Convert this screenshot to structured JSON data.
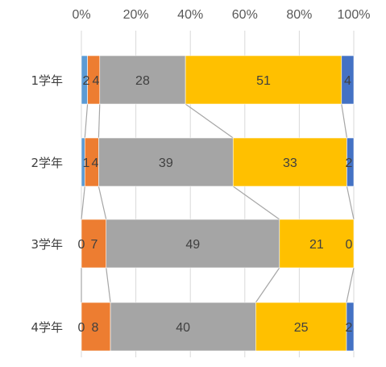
{
  "chart_data": {
    "type": "bar",
    "orientation": "horizontal",
    "stacked": "percent",
    "categories": [
      "1学年",
      "2学年",
      "3学年",
      "4学年"
    ],
    "x_ticks": [
      "0%",
      "20%",
      "40%",
      "60%",
      "80%",
      "100%"
    ],
    "xlim": [
      0,
      100
    ],
    "x_axis_position": "top",
    "grid": true,
    "series_lines": true,
    "legend": "none",
    "series": [
      {
        "color": "#5B9BD5",
        "values": [
          2,
          1,
          0,
          0
        ],
        "labels": [
          "2",
          "1",
          "0",
          "0"
        ]
      },
      {
        "color": "#ED7D31",
        "values": [
          4,
          4,
          7,
          8
        ],
        "labels": [
          "4",
          "4",
          "7",
          "8"
        ]
      },
      {
        "color": "#A5A5A5",
        "values": [
          28,
          39,
          49,
          40
        ],
        "labels": [
          "28",
          "39",
          "49",
          "40"
        ]
      },
      {
        "color": "#FFC000",
        "values": [
          51,
          33,
          21,
          25
        ],
        "labels": [
          "51",
          "33",
          "21",
          "25"
        ]
      },
      {
        "color": "#4472C4",
        "values": [
          4,
          2,
          0,
          2
        ],
        "labels": [
          "4",
          "2",
          "0",
          "2"
        ]
      }
    ]
  }
}
